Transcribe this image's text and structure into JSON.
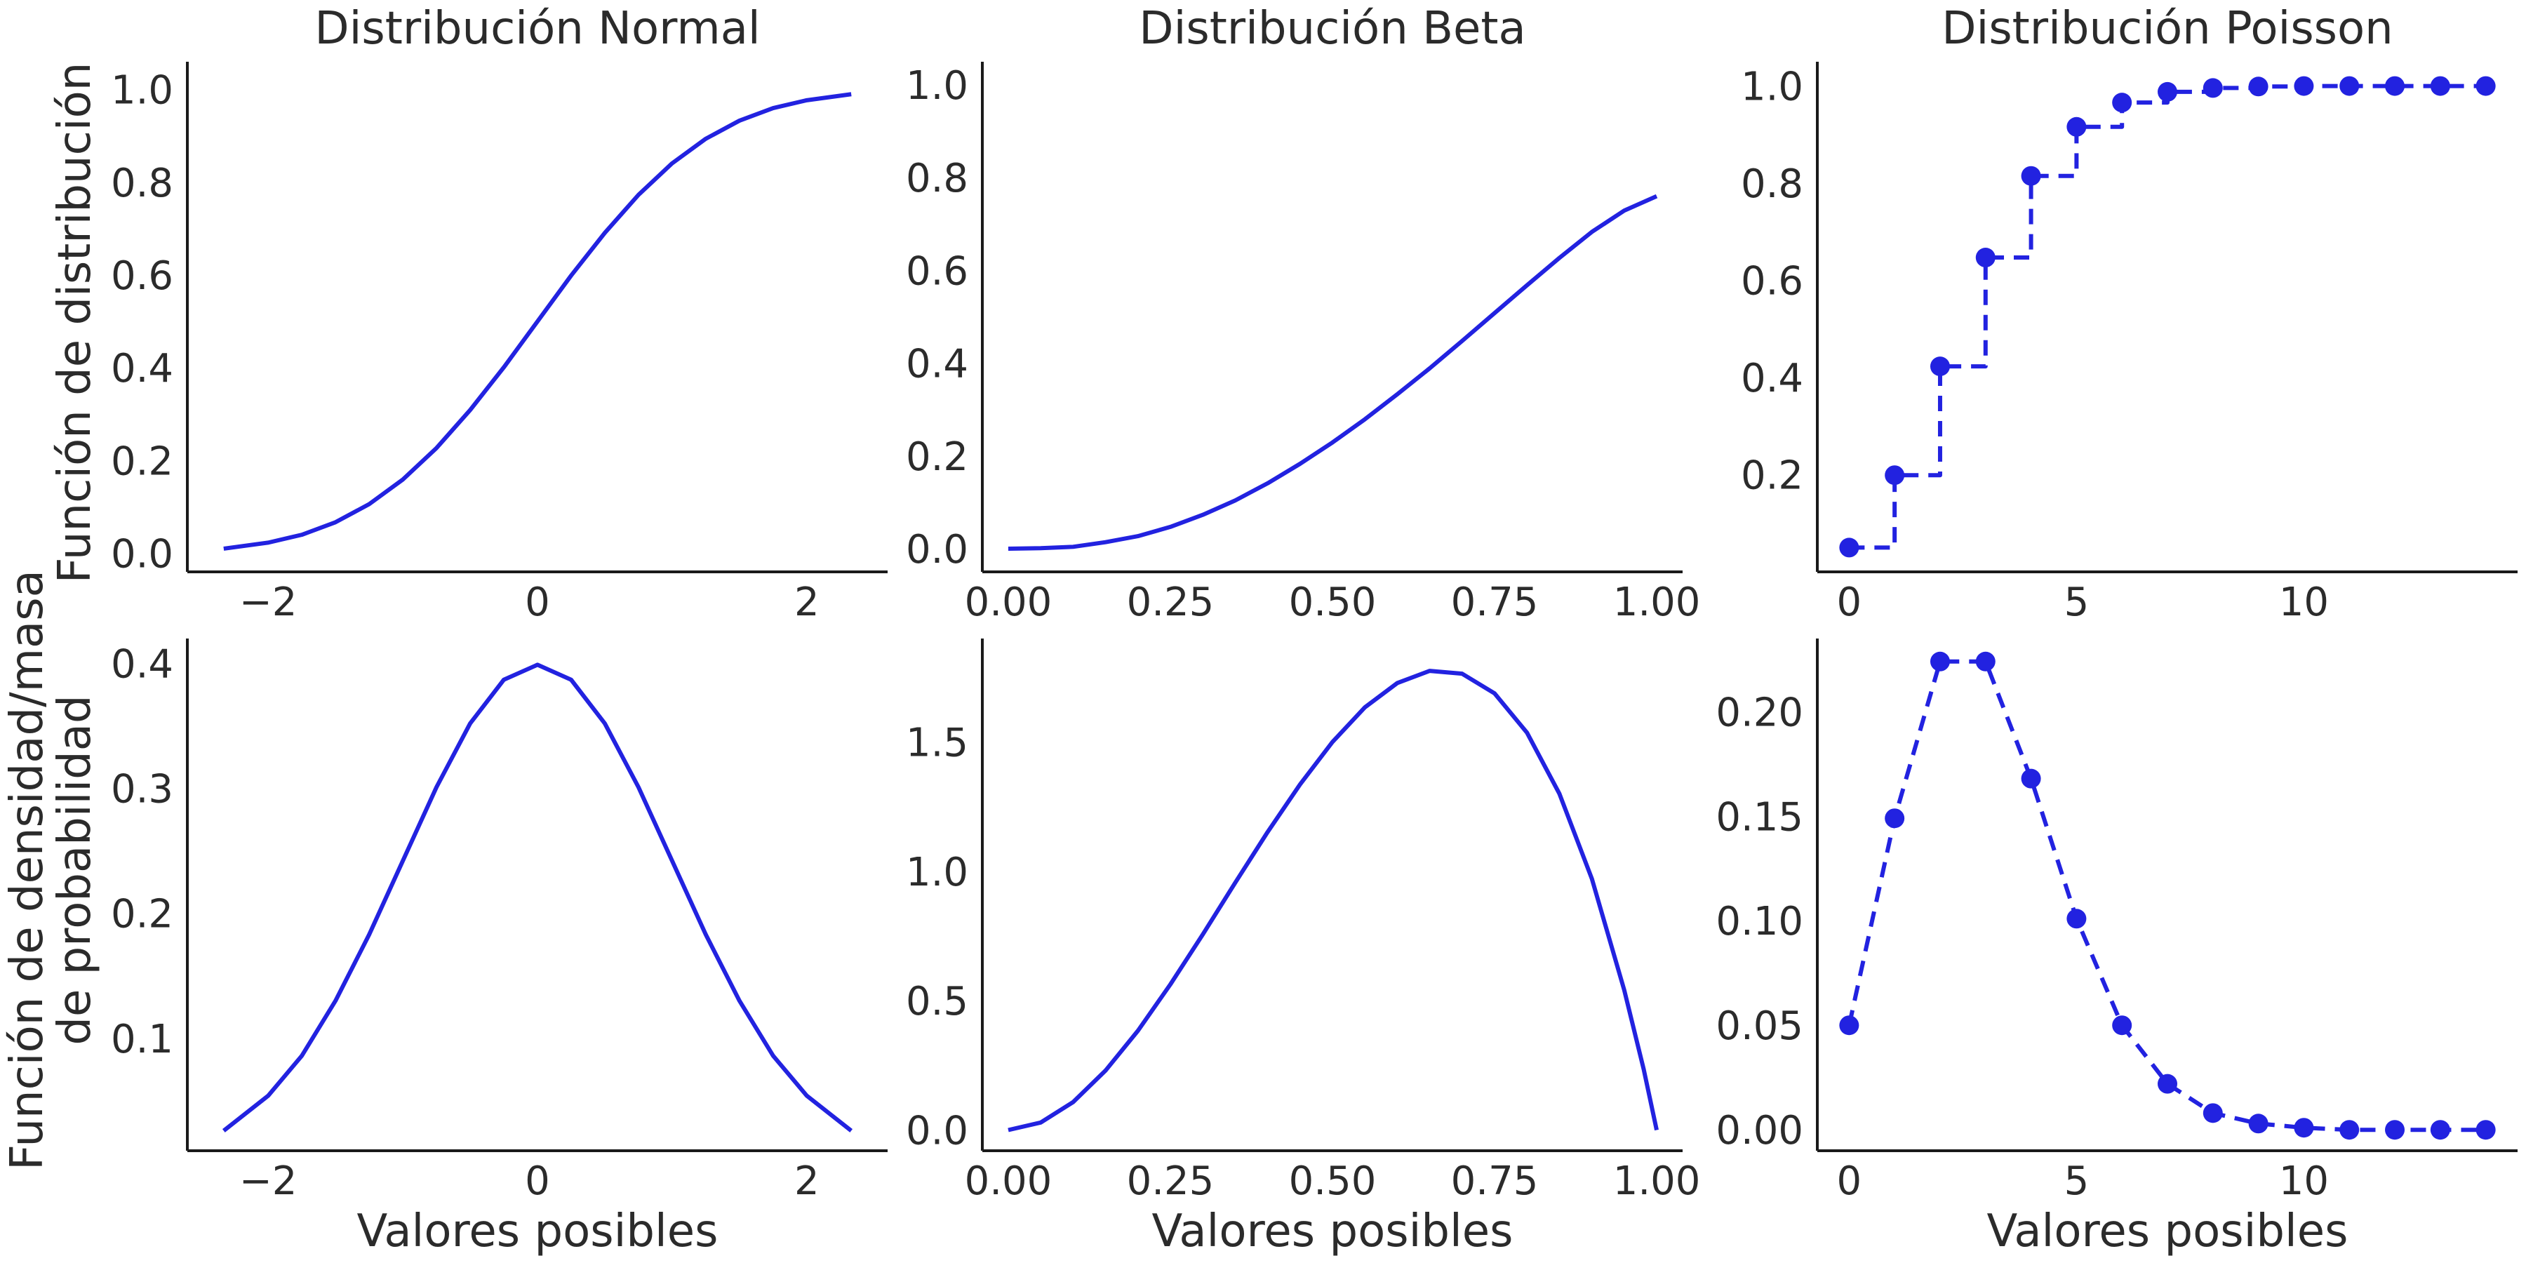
{
  "figure": {
    "row_labels": {
      "cdf": "Función de distribución",
      "pdf_line1": "Función de densidad/masa",
      "pdf_line2": "de probabilidad"
    },
    "xlabel": "Valores posibles",
    "line_color": "#2222e0"
  },
  "chart_data": [
    {
      "type": "line",
      "panel": "normal-cdf",
      "title": "Distribución Normal",
      "xlabel": "",
      "ylabel": "Función de distribución",
      "xlim": [
        -2.6,
        2.6
      ],
      "ylim": [
        -0.04,
        1.06
      ],
      "xticks": [
        -2,
        0,
        2
      ],
      "xtick_labels": [
        "−2",
        "0",
        "2"
      ],
      "yticks": [
        0.0,
        0.2,
        0.4,
        0.6,
        0.8,
        1.0
      ],
      "ytick_labels": [
        "0.0",
        "0.2",
        "0.4",
        "0.6",
        "0.8",
        "1.0"
      ],
      "x": [
        -2.33,
        -2.0,
        -1.75,
        -1.5,
        -1.25,
        -1.0,
        -0.75,
        -0.5,
        -0.25,
        0.0,
        0.25,
        0.5,
        0.75,
        1.0,
        1.25,
        1.5,
        1.75,
        2.0,
        2.33
      ],
      "y": [
        0.01,
        0.023,
        0.04,
        0.067,
        0.106,
        0.159,
        0.227,
        0.309,
        0.401,
        0.5,
        0.599,
        0.691,
        0.773,
        0.841,
        0.894,
        0.933,
        0.96,
        0.977,
        0.99
      ],
      "style": "solid"
    },
    {
      "type": "line",
      "panel": "beta-cdf",
      "title": "Distribución Beta",
      "xlabel": "",
      "ylabel": "",
      "xlim": [
        -0.04,
        1.04
      ],
      "ylim": [
        -0.05,
        1.05
      ],
      "xticks": [
        0.0,
        0.25,
        0.5,
        0.75,
        1.0
      ],
      "xtick_labels": [
        "0.00",
        "0.25",
        "0.50",
        "0.75",
        "1.00"
      ],
      "yticks": [
        0.0,
        0.2,
        0.4,
        0.6,
        0.8,
        1.0
      ],
      "ytick_labels": [
        "0.0",
        "0.2",
        "0.4",
        "0.6",
        "0.8",
        "1.0"
      ],
      "x": [
        0.0,
        0.05,
        0.1,
        0.15,
        0.2,
        0.25,
        0.3,
        0.35,
        0.4,
        0.45,
        0.5,
        0.55,
        0.6,
        0.65,
        0.7,
        0.75,
        0.8,
        0.85,
        0.9,
        0.95,
        1.0
      ],
      "y": [
        0.0,
        0.001,
        0.004,
        0.014,
        0.027,
        0.047,
        0.073,
        0.104,
        0.141,
        0.183,
        0.229,
        0.279,
        0.333,
        0.389,
        0.448,
        0.508,
        0.568,
        0.627,
        0.683,
        0.729,
        0.76
      ],
      "style": "solid"
    },
    {
      "type": "line",
      "panel": "poisson-cdf",
      "title": "Distribución Poisson",
      "xlabel": "",
      "ylabel": "",
      "xlim": [
        -0.7,
        14.7
      ],
      "ylim": [
        0.0,
        1.05
      ],
      "xticks": [
        0,
        5,
        10
      ],
      "xtick_labels": [
        "0",
        "5",
        "10"
      ],
      "yticks": [
        0.2,
        0.4,
        0.6,
        0.8,
        1.0
      ],
      "ytick_labels": [
        "0.2",
        "0.4",
        "0.6",
        "0.8",
        "1.0"
      ],
      "x": [
        0,
        1,
        2,
        3,
        4,
        5,
        6,
        7,
        8,
        9,
        10,
        11,
        12,
        13,
        14
      ],
      "y": [
        0.05,
        0.199,
        0.423,
        0.647,
        0.815,
        0.916,
        0.966,
        0.988,
        0.996,
        0.999,
        1.0,
        1.0,
        1.0,
        1.0,
        1.0
      ],
      "style": "dashed-step-markers"
    },
    {
      "type": "line",
      "panel": "normal-pdf",
      "title": "",
      "xlabel": "Valores posibles",
      "ylabel": "Función de densidad/masa de probabilidad",
      "xlim": [
        -2.6,
        2.6
      ],
      "ylim": [
        0.01,
        0.42
      ],
      "xticks": [
        -2,
        0,
        2
      ],
      "xtick_labels": [
        "−2",
        "0",
        "2"
      ],
      "yticks": [
        0.1,
        0.2,
        0.3,
        0.4
      ],
      "ytick_labels": [
        "0.1",
        "0.2",
        "0.3",
        "0.4"
      ],
      "x": [
        -2.33,
        -2.0,
        -1.75,
        -1.5,
        -1.25,
        -1.0,
        -0.75,
        -0.5,
        -0.25,
        0.0,
        0.25,
        0.5,
        0.75,
        1.0,
        1.25,
        1.5,
        1.75,
        2.0,
        2.33
      ],
      "y": [
        0.026,
        0.054,
        0.086,
        0.13,
        0.183,
        0.242,
        0.301,
        0.352,
        0.387,
        0.399,
        0.387,
        0.352,
        0.301,
        0.242,
        0.183,
        0.13,
        0.086,
        0.054,
        0.026
      ],
      "style": "solid"
    },
    {
      "type": "line",
      "panel": "beta-pdf",
      "title": "",
      "xlabel": "Valores posibles",
      "ylabel": "",
      "xlim": [
        -0.04,
        1.04
      ],
      "ylim": [
        -0.08,
        1.9
      ],
      "xticks": [
        0.0,
        0.25,
        0.5,
        0.75,
        1.0
      ],
      "xtick_labels": [
        "0.00",
        "0.25",
        "0.50",
        "0.75",
        "1.00"
      ],
      "yticks": [
        0.0,
        0.5,
        1.0,
        1.5
      ],
      "ytick_labels": [
        "0.0",
        "0.5",
        "1.0",
        "1.5"
      ],
      "x": [
        0.0,
        0.05,
        0.1,
        0.15,
        0.2,
        0.25,
        0.3,
        0.35,
        0.4,
        0.45,
        0.5,
        0.55,
        0.6,
        0.65,
        0.7,
        0.75,
        0.8,
        0.85,
        0.9,
        0.95,
        0.98,
        1.0
      ],
      "y": [
        0.0,
        0.029,
        0.108,
        0.23,
        0.384,
        0.563,
        0.756,
        0.956,
        1.152,
        1.336,
        1.5,
        1.634,
        1.728,
        1.775,
        1.764,
        1.688,
        1.536,
        1.3,
        0.972,
        0.541,
        0.235,
        0.0
      ],
      "style": "solid"
    },
    {
      "type": "line",
      "panel": "poisson-pmf",
      "title": "",
      "xlabel": "Valores posibles",
      "ylabel": "",
      "xlim": [
        -0.7,
        14.7
      ],
      "ylim": [
        -0.01,
        0.235
      ],
      "xticks": [
        0,
        5,
        10
      ],
      "xtick_labels": [
        "0",
        "5",
        "10"
      ],
      "yticks": [
        0.0,
        0.05,
        0.1,
        0.15,
        0.2
      ],
      "ytick_labels": [
        "0.00",
        "0.05",
        "0.10",
        "0.15",
        "0.20"
      ],
      "x": [
        0,
        1,
        2,
        3,
        4,
        5,
        6,
        7,
        8,
        9,
        10,
        11,
        12,
        13,
        14
      ],
      "y": [
        0.05,
        0.149,
        0.224,
        0.224,
        0.168,
        0.101,
        0.05,
        0.022,
        0.008,
        0.003,
        0.001,
        0.0,
        0.0,
        0.0,
        0.0
      ],
      "style": "dashed-markers"
    }
  ]
}
